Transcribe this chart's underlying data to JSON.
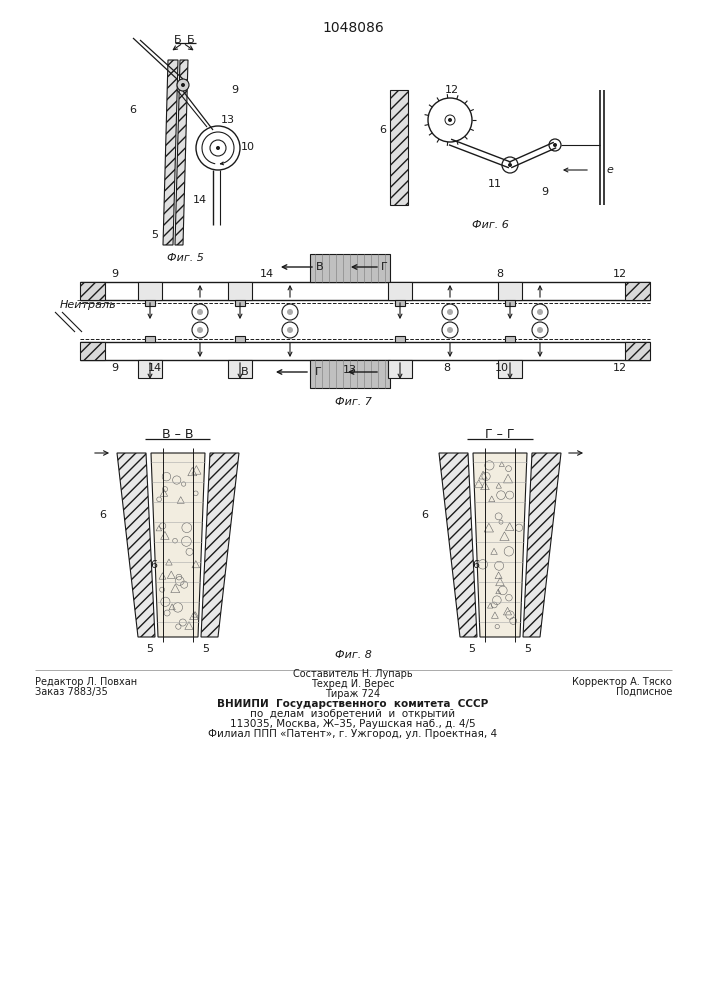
{
  "title": "1048086",
  "bg_color": "#ffffff",
  "line_color": "#1a1a1a",
  "footer": {
    "col1": {
      "editor": "Редактор Л. Повхан",
      "order": "Заказ 7883/35"
    },
    "col2": {
      "composer": "Составитель Н. Лупарь",
      "techred": "Техред И. Верес",
      "tirazh": "Тираж 724"
    },
    "col3": {
      "corrector": "Корректор А. Тяско",
      "podpisnoe": "Подписное"
    },
    "line1": "ВНИИПИ  Государственного  комитета  СССР",
    "line2": "по  делам  изобретений  и  открытий",
    "line3": "113035, Москва, Ж–35, Раушская наб., д. 4/5",
    "line4": "Филиал ППП «Патент», г. Ужгород, ул. Проектная, 4"
  }
}
